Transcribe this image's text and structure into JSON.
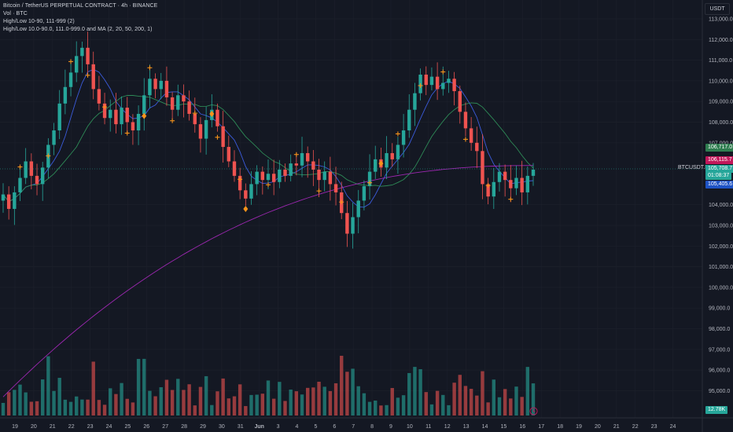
{
  "legend": {
    "title": "Bitcoin / TetherUS PERPETUAL CONTRACT · 4h · BINANCE",
    "volume": "Vol · BTC",
    "indicator1": "High/Low 10-90, 111-999 (2)",
    "indicator2": "High/Low 10.0-90.0, 111.0-999.0 and MA (2, 20, 50, 200, 1)"
  },
  "currency": "USDT",
  "ticker_label": "BTCUSDT.P",
  "price_scale": [
    "113,000.0",
    "112,000.0",
    "111,000.0",
    "110,000.0",
    "109,000.0",
    "108,000.0",
    "107,000.0",
    "104,000.0",
    "103,000.0",
    "102,000.0",
    "101,000.0",
    "100,000.0",
    "99,000.0",
    "98,000.0",
    "97,000.0",
    "96,000.0",
    "95,000.0"
  ],
  "price_tags": [
    {
      "label": "106,717.0",
      "color": "#2e7d4f"
    },
    {
      "label": "106,115.7",
      "color": "#c2185b"
    },
    {
      "label": "105,708.7",
      "color": "#26a69a"
    },
    {
      "label": "01:08:37",
      "color": "#26a69a"
    },
    {
      "label": "105,405.6",
      "color": "#1e53c5"
    },
    {
      "label": "12.78K",
      "color": "#26a69a"
    }
  ],
  "time_scale": [
    "19",
    "20",
    "21",
    "22",
    "23",
    "24",
    "25",
    "26",
    "27",
    "28",
    "29",
    "30",
    "31",
    "Jun",
    "3",
    "4",
    "5",
    "6",
    "7",
    "8",
    "9",
    "10",
    "11",
    "12",
    "13",
    "14",
    "15",
    "16",
    "17",
    "18",
    "19",
    "20",
    "21",
    "22",
    "23",
    "24"
  ],
  "colors": {
    "up": "#26a69a",
    "down": "#ef5350",
    "ma_fast": "#3b5bdb",
    "ma_mid": "#2e8b57",
    "ma_slow": "#9c27b0",
    "marker": "#f7931a"
  },
  "icons": [
    "clock-icon"
  ],
  "chart_data": {
    "type": "candlestick",
    "timeframe": "4h",
    "close_series": [
      104.5,
      103.8,
      104.6,
      105.3,
      106.1,
      105.4,
      105.0,
      105.8,
      106.9,
      107.6,
      108.9,
      109.7,
      110.4,
      111.2,
      111.6,
      110.8,
      109.6,
      108.9,
      108.2,
      108.6,
      107.9,
      108.7,
      108.0,
      107.6,
      108.4,
      109.3,
      110.1,
      109.6,
      110.0,
      109.2,
      108.6,
      109.3,
      109.0,
      108.4,
      107.9,
      107.2,
      108.1,
      108.6,
      107.8,
      106.8,
      106.1,
      105.4,
      104.7,
      104.3,
      105.0,
      105.6,
      105.2,
      105.5,
      105.1,
      105.7,
      105.4,
      106.0,
      105.9,
      106.5,
      106.1,
      105.7,
      105.2,
      105.6,
      105.0,
      104.6,
      103.6,
      102.6,
      103.4,
      104.2,
      104.9,
      105.6,
      106.2,
      105.8,
      106.5,
      106.2,
      106.9,
      107.6,
      108.6,
      109.4,
      110.3,
      109.8,
      110.2,
      109.6,
      109.9,
      110.1,
      109.5,
      108.5,
      107.7,
      107.0,
      106.6,
      105.0,
      104.4,
      105.1,
      105.6,
      105.2,
      104.8,
      105.3,
      104.6,
      105.4,
      105.7
    ],
    "markers_up": 22,
    "markers_down": 14
  }
}
